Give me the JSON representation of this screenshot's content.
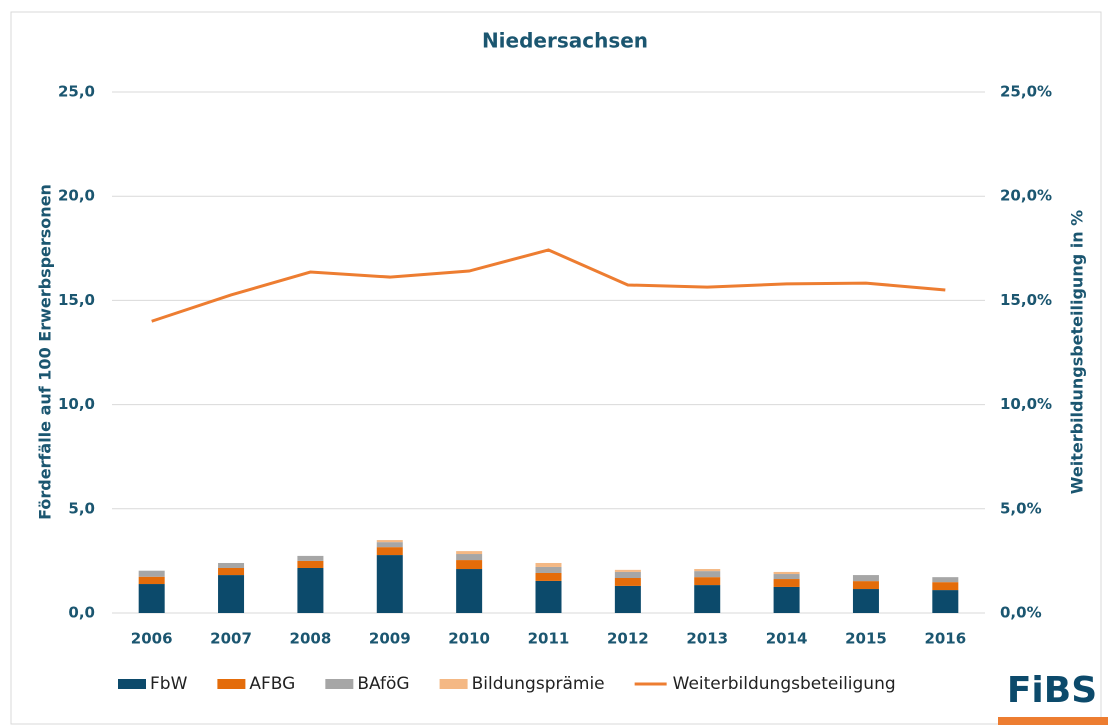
{
  "chart_data": {
    "type": "bar",
    "title": "Niedersachsen",
    "y_label": "Förderfälle auf 100 Erwerbspersonen",
    "y2_label": "Weiterbildungsbeteiligung in %",
    "logo": "FiBS",
    "stacked": true,
    "categories": [
      "2006",
      "2007",
      "2008",
      "2009",
      "2010",
      "2011",
      "2012",
      "2013",
      "2014",
      "2015",
      "2016"
    ],
    "series": [
      {
        "name": "FbW",
        "type": "bar",
        "color": "#0c4a6b",
        "values": [
          1.39,
          1.82,
          2.16,
          2.78,
          2.11,
          1.54,
          1.3,
          1.34,
          1.25,
          1.15,
          1.1
        ]
      },
      {
        "name": "AFBG",
        "type": "bar",
        "color": "#e46c0a",
        "values": [
          0.35,
          0.34,
          0.34,
          0.38,
          0.43,
          0.38,
          0.38,
          0.38,
          0.38,
          0.38,
          0.38
        ]
      },
      {
        "name": "BAföG",
        "type": "bar",
        "color": "#a6a6a6",
        "values": [
          0.29,
          0.24,
          0.24,
          0.24,
          0.29,
          0.29,
          0.29,
          0.29,
          0.24,
          0.29,
          0.24
        ]
      },
      {
        "name": "Bildungsprämie",
        "type": "bar",
        "color": "#f4b884",
        "values": [
          0,
          0,
          0,
          0.1,
          0.14,
          0.19,
          0.1,
          0.1,
          0.1,
          0,
          0
        ]
      },
      {
        "name": "Weiterbildungsbeteiligung",
        "type": "line",
        "axis": "y2",
        "color": "#ed7d31",
        "values": [
          14.0,
          15.26,
          16.36,
          16.12,
          16.41,
          17.42,
          15.74,
          15.64,
          15.79,
          15.83,
          15.5
        ]
      }
    ],
    "ylim": [
      0,
      25
    ],
    "yticks": [
      {
        "value": 0,
        "label": "0,0"
      },
      {
        "value": 5,
        "label": "5,0"
      },
      {
        "value": 10,
        "label": "10,0"
      },
      {
        "value": 15,
        "label": "15,0"
      },
      {
        "value": 20,
        "label": "20,0"
      },
      {
        "value": 25,
        "label": "25,0"
      }
    ],
    "y2lim": [
      0,
      25
    ],
    "y2ticks": [
      {
        "value": 0,
        "label": "0,0%"
      },
      {
        "value": 5,
        "label": "5,0%"
      },
      {
        "value": 10,
        "label": "10,0%"
      },
      {
        "value": 15,
        "label": "15,0%"
      },
      {
        "value": 20,
        "label": "20,0%"
      },
      {
        "value": 25,
        "label": "25,0%"
      }
    ],
    "grid": true,
    "legend": "bottom"
  }
}
